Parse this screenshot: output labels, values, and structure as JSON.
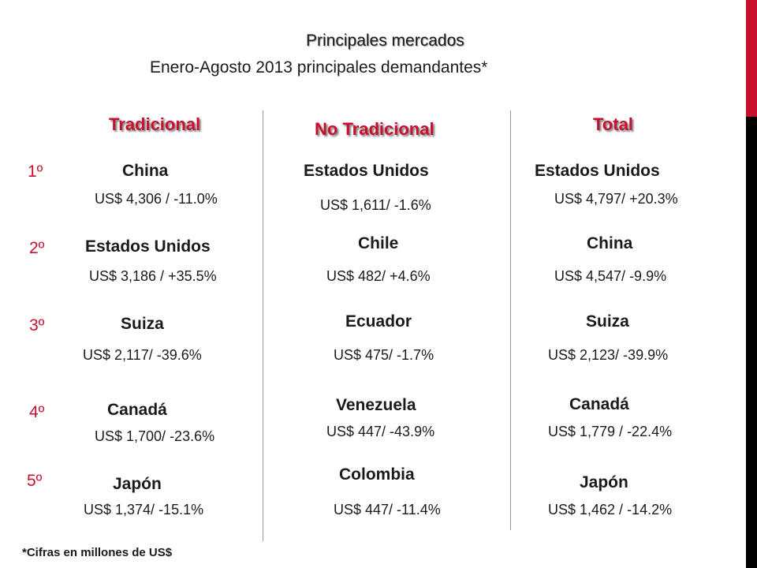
{
  "title": "Principales mercados",
  "subtitle": "Enero-Agosto 2013 principales demandantes*",
  "columns": {
    "tradicional": "Tradicional",
    "no_tradicional": "No Tradicional",
    "total": "Total"
  },
  "ranks": [
    "1º",
    "2º",
    "3º",
    "4º",
    "5º"
  ],
  "tradicional": [
    {
      "country": "China",
      "value": "US$ 4,306 / -11.0%"
    },
    {
      "country": "Estados Unidos",
      "value": "US$ 3,186 / +35.5%"
    },
    {
      "country": "Suiza",
      "value": "US$ 2,117/ -39.6%"
    },
    {
      "country": "Canadá",
      "value": "US$ 1,700/ -23.6%"
    },
    {
      "country": "Japón",
      "value": "US$ 1,374/ -15.1%"
    }
  ],
  "no_tradicional": [
    {
      "country": "Estados Unidos",
      "value": "US$ 1,611/ -1.6%"
    },
    {
      "country": "Chile",
      "value": "US$ 482/ +4.6%"
    },
    {
      "country": "Ecuador",
      "value": "US$ 475/ -1.7%"
    },
    {
      "country": "Venezuela",
      "value": "US$ 447/ -43.9%"
    },
    {
      "country": "Colombia",
      "value": "US$ 447/ -11.4%"
    }
  ],
  "total": [
    {
      "country": "Estados Unidos",
      "value": "US$ 4,797/ +20.3%"
    },
    {
      "country": "China",
      "value": "US$ 4,547/ -9.9%"
    },
    {
      "country": "Suiza",
      "value": "US$ 2,123/ -39.9%"
    },
    {
      "country": "Canadá",
      "value": "US$ 1,779 / -22.4%"
    },
    {
      "country": "Japón",
      "value": "US$ 1,462 / -14.2%"
    }
  ],
  "footnote": "*Cifras en millones de US$",
  "colors": {
    "accent": "#c8102e",
    "text": "#1a1a1a",
    "edge_bar": "#000000"
  }
}
